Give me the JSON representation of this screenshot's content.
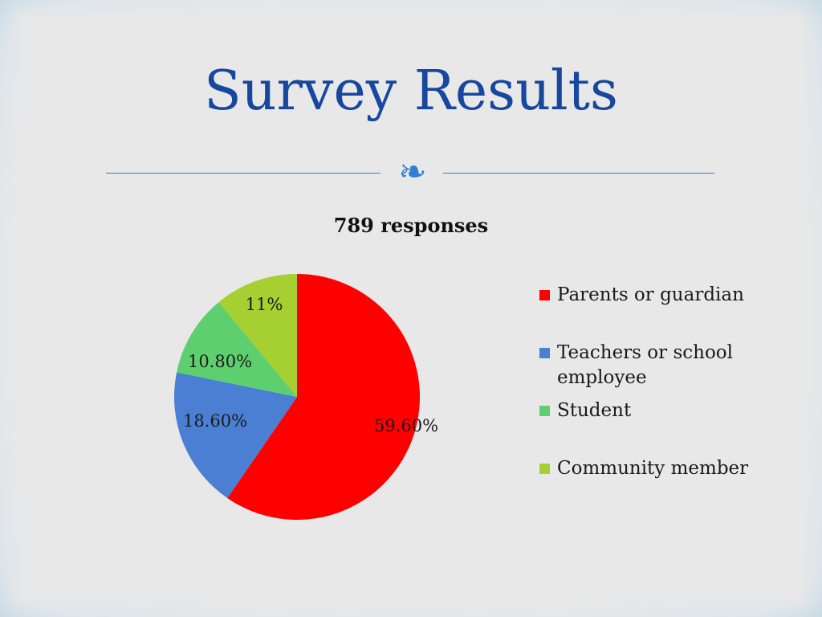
{
  "slide": {
    "title": "Survey Results",
    "ornament": "❧"
  },
  "colors": {
    "title": "#17479e",
    "divider": "#2e7fd3",
    "background": "#e8e8e8"
  },
  "chart_data": {
    "type": "pie",
    "title": "789 responses",
    "legend_position": "right",
    "slices": [
      {
        "name": "Parents or guardian",
        "value": 59.6,
        "label": "59.60%",
        "color": "#ff0000"
      },
      {
        "name": "Teachers or school employee",
        "value": 18.6,
        "label": "18.60%",
        "color": "#4a7fd4"
      },
      {
        "name": "Student",
        "value": 10.8,
        "label": "10.80%",
        "color": "#5ecf6f"
      },
      {
        "name": "Community member",
        "value": 11.0,
        "label": "11%",
        "color": "#a6cf31"
      }
    ]
  }
}
